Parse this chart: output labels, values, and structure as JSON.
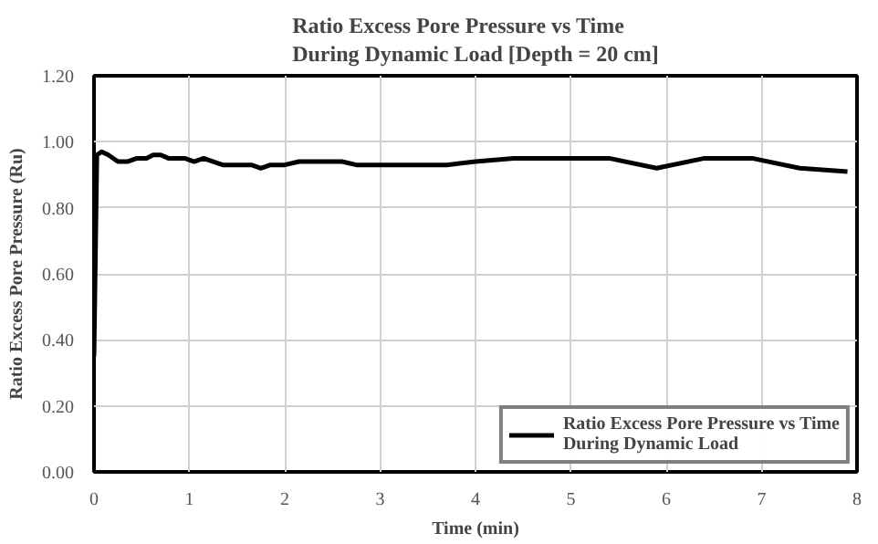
{
  "chart_data": {
    "type": "line",
    "title": "Ratio Excess Pore Pressure vs Time\nDuring Dynamic Load [Depth = 20 cm]",
    "xlabel": "Time (min)",
    "ylabel": "Ratio Excess Pore Pressure (Ru)",
    "x": [
      0,
      0.03,
      0.08,
      0.15,
      0.25,
      0.35,
      0.45,
      0.55,
      0.62,
      0.7,
      0.78,
      0.85,
      0.95,
      1.05,
      1.15,
      1.25,
      1.35,
      1.5,
      1.65,
      1.75,
      1.85,
      2.0,
      2.15,
      2.3,
      2.45,
      2.6,
      2.75,
      2.9,
      3.1,
      3.3,
      3.5,
      3.7,
      4.0,
      4.4,
      4.8,
      5.4,
      5.9,
      6.4,
      6.9,
      7.4,
      7.9
    ],
    "series": [
      {
        "name": "Ratio Excess Pore Pressure vs Time\nDuring Dynamic Load",
        "color": "#000000",
        "values": [
          0.35,
          0.96,
          0.97,
          0.96,
          0.94,
          0.94,
          0.95,
          0.95,
          0.96,
          0.96,
          0.95,
          0.95,
          0.95,
          0.94,
          0.95,
          0.94,
          0.93,
          0.93,
          0.93,
          0.92,
          0.93,
          0.93,
          0.94,
          0.94,
          0.94,
          0.94,
          0.93,
          0.93,
          0.93,
          0.93,
          0.93,
          0.93,
          0.94,
          0.95,
          0.95,
          0.95,
          0.92,
          0.95,
          0.95,
          0.92,
          0.91
        ]
      }
    ],
    "xlim": [
      0,
      8
    ],
    "xticks": [
      0,
      1,
      2,
      3,
      4,
      5,
      6,
      7,
      8
    ],
    "ylim": [
      0,
      1.2
    ],
    "yticks": [
      {
        "value": 0,
        "label": "0.00"
      },
      {
        "value": 0.2,
        "label": "0.20"
      },
      {
        "value": 0.4,
        "label": "0.40"
      },
      {
        "value": 0.6,
        "label": "0.60"
      },
      {
        "value": 0.8,
        "label": "0.80"
      },
      {
        "value": 1.0,
        "label": "1.00"
      },
      {
        "value": 1.2,
        "label": "1.20"
      }
    ],
    "grid": true,
    "legend": "bottom right",
    "line_style": "solid",
    "marker": "none"
  }
}
